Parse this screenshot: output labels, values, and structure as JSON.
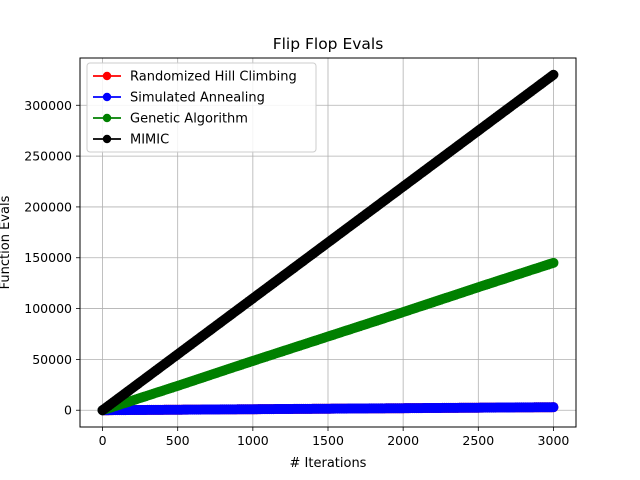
{
  "chart_data": {
    "type": "line",
    "title": "Flip Flop Evals",
    "xlabel": "# Iterations",
    "ylabel": "Function Evals",
    "xlim": [
      -150,
      3150
    ],
    "ylim": [
      -16500,
      346500
    ],
    "xticks": [
      0,
      500,
      1000,
      1500,
      2000,
      2500,
      3000
    ],
    "xtick_labels": [
      "0",
      "500",
      "1000",
      "1500",
      "2000",
      "2500",
      "3000"
    ],
    "yticks": [
      0,
      50000,
      100000,
      150000,
      200000,
      250000,
      300000
    ],
    "ytick_labels": [
      "0",
      "50000",
      "100000",
      "150000",
      "200000",
      "250000",
      "300000"
    ],
    "grid": true,
    "legend_position": "top-left",
    "series": [
      {
        "name": "Randomized Hill Climbing",
        "color": "#ff0000",
        "x": [
          0,
          500,
          1000,
          1500,
          2000,
          2500,
          3000
        ],
        "y": [
          0,
          500,
          1000,
          1500,
          2000,
          2500,
          3000
        ]
      },
      {
        "name": "Simulated Annealing",
        "color": "#0000ff",
        "x": [
          0,
          500,
          1000,
          1500,
          2000,
          2500,
          3000
        ],
        "y": [
          0,
          500,
          1000,
          1500,
          2000,
          2500,
          3000
        ]
      },
      {
        "name": "Genetic Algorithm",
        "color": "#008000",
        "x": [
          0,
          500,
          1000,
          1500,
          2000,
          2500,
          3000
        ],
        "y": [
          0,
          24000,
          48500,
          72500,
          96500,
          121000,
          145000
        ]
      },
      {
        "name": "MIMIC",
        "color": "#000000",
        "x": [
          0,
          500,
          1000,
          1500,
          2000,
          2500,
          3000
        ],
        "y": [
          0,
          55000,
          110000,
          165000,
          220000,
          275000,
          330000
        ]
      }
    ]
  }
}
